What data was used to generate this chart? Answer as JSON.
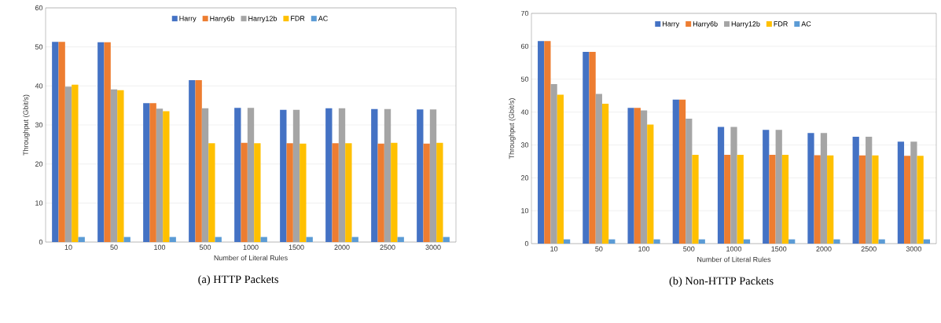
{
  "chart_data": [
    {
      "type": "bar",
      "title": "(a) HTTP Packets",
      "xlabel": "Number of Literal Rules",
      "ylabel": "Throughput (Gbit/s)",
      "categories": [
        "10",
        "50",
        "100",
        "500",
        "1000",
        "1500",
        "2000",
        "2500",
        "3000"
      ],
      "series": [
        {
          "name": "Harry",
          "color": "#4472c4",
          "values": [
            51.3,
            51.2,
            35.6,
            41.5,
            34.4,
            33.9,
            34.3,
            34.1,
            34.0
          ]
        },
        {
          "name": "Harry6b",
          "color": "#ed7d31",
          "values": [
            51.3,
            51.2,
            35.6,
            41.5,
            25.4,
            25.3,
            25.3,
            25.2,
            25.2
          ]
        },
        {
          "name": "Harry12b",
          "color": "#a5a5a5",
          "values": [
            39.8,
            39.1,
            34.2,
            34.3,
            34.4,
            33.9,
            34.3,
            34.1,
            34.0
          ]
        },
        {
          "name": "FDR",
          "color": "#ffc000",
          "values": [
            40.3,
            38.9,
            33.5,
            25.3,
            25.3,
            25.2,
            25.3,
            25.4,
            25.4
          ]
        },
        {
          "name": "AC",
          "color": "#5b9bd5",
          "values": [
            1.3,
            1.3,
            1.3,
            1.3,
            1.3,
            1.3,
            1.3,
            1.3,
            1.3
          ]
        }
      ],
      "ylim": [
        0,
        60
      ],
      "yticks": [
        0,
        10,
        20,
        30,
        40,
        50,
        60
      ],
      "grid": "y",
      "legend": "top"
    },
    {
      "type": "bar",
      "title": "(b) Non-HTTP Packets",
      "xlabel": "Number of Literal Rules",
      "ylabel": "Throughput (Gbit/s)",
      "categories": [
        "10",
        "50",
        "100",
        "500",
        "1000",
        "1500",
        "2000",
        "2500",
        "3000"
      ],
      "series": [
        {
          "name": "Harry",
          "color": "#4472c4",
          "values": [
            61.6,
            58.3,
            41.3,
            43.8,
            35.5,
            34.6,
            33.6,
            32.5,
            31.0
          ]
        },
        {
          "name": "Harry6b",
          "color": "#ed7d31",
          "values": [
            61.6,
            58.3,
            41.3,
            43.8,
            27.0,
            27.0,
            26.9,
            26.8,
            26.7
          ]
        },
        {
          "name": "Harry12b",
          "color": "#a5a5a5",
          "values": [
            48.5,
            45.5,
            40.5,
            38.0,
            35.5,
            34.6,
            33.6,
            32.5,
            31.0
          ]
        },
        {
          "name": "FDR",
          "color": "#ffc000",
          "values": [
            45.3,
            42.5,
            36.2,
            27.0,
            27.0,
            27.0,
            26.8,
            26.8,
            26.7
          ]
        },
        {
          "name": "AC",
          "color": "#5b9bd5",
          "values": [
            1.3,
            1.3,
            1.3,
            1.3,
            1.3,
            1.3,
            1.3,
            1.3,
            1.3
          ]
        }
      ],
      "ylim": [
        0,
        70
      ],
      "yticks": [
        0,
        10,
        20,
        30,
        40,
        50,
        60,
        70
      ],
      "grid": "y",
      "legend": "top"
    }
  ]
}
